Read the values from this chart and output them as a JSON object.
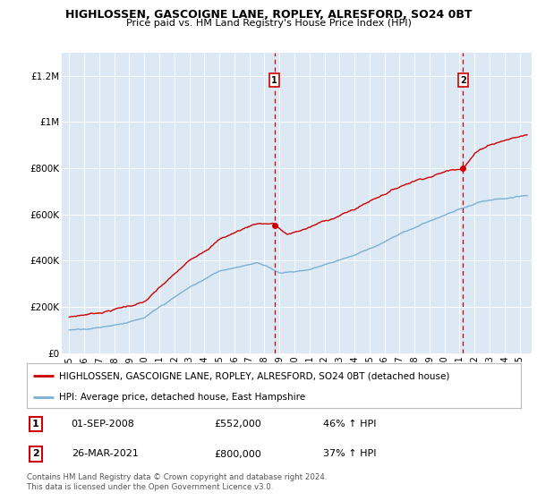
{
  "title": "HIGHLOSSEN, GASCOIGNE LANE, ROPLEY, ALRESFORD, SO24 0BT",
  "subtitle": "Price paid vs. HM Land Registry's House Price Index (HPI)",
  "background_color": "#dce9f5",
  "plot_bg_color": "#dce9f5",
  "red_line_label": "HIGHLOSSEN, GASCOIGNE LANE, ROPLEY, ALRESFORD, SO24 0BT (detached house)",
  "blue_line_label": "HPI: Average price, detached house, East Hampshire",
  "annotation1_date": "01-SEP-2008",
  "annotation1_price": "£552,000",
  "annotation1_hpi": "46% ↑ HPI",
  "annotation2_date": "26-MAR-2021",
  "annotation2_price": "£800,000",
  "annotation2_hpi": "37% ↑ HPI",
  "footer": "Contains HM Land Registry data © Crown copyright and database right 2024.\nThis data is licensed under the Open Government Licence v3.0.",
  "red_color": "#cc0000",
  "blue_color": "#7bafd4",
  "vline1_x": 2008.67,
  "vline2_x": 2021.23,
  "marker1_y": 552000,
  "marker2_y": 800000,
  "ylim": [
    0,
    1300000
  ],
  "xlim_start": 1994.5,
  "xlim_end": 2025.8
}
